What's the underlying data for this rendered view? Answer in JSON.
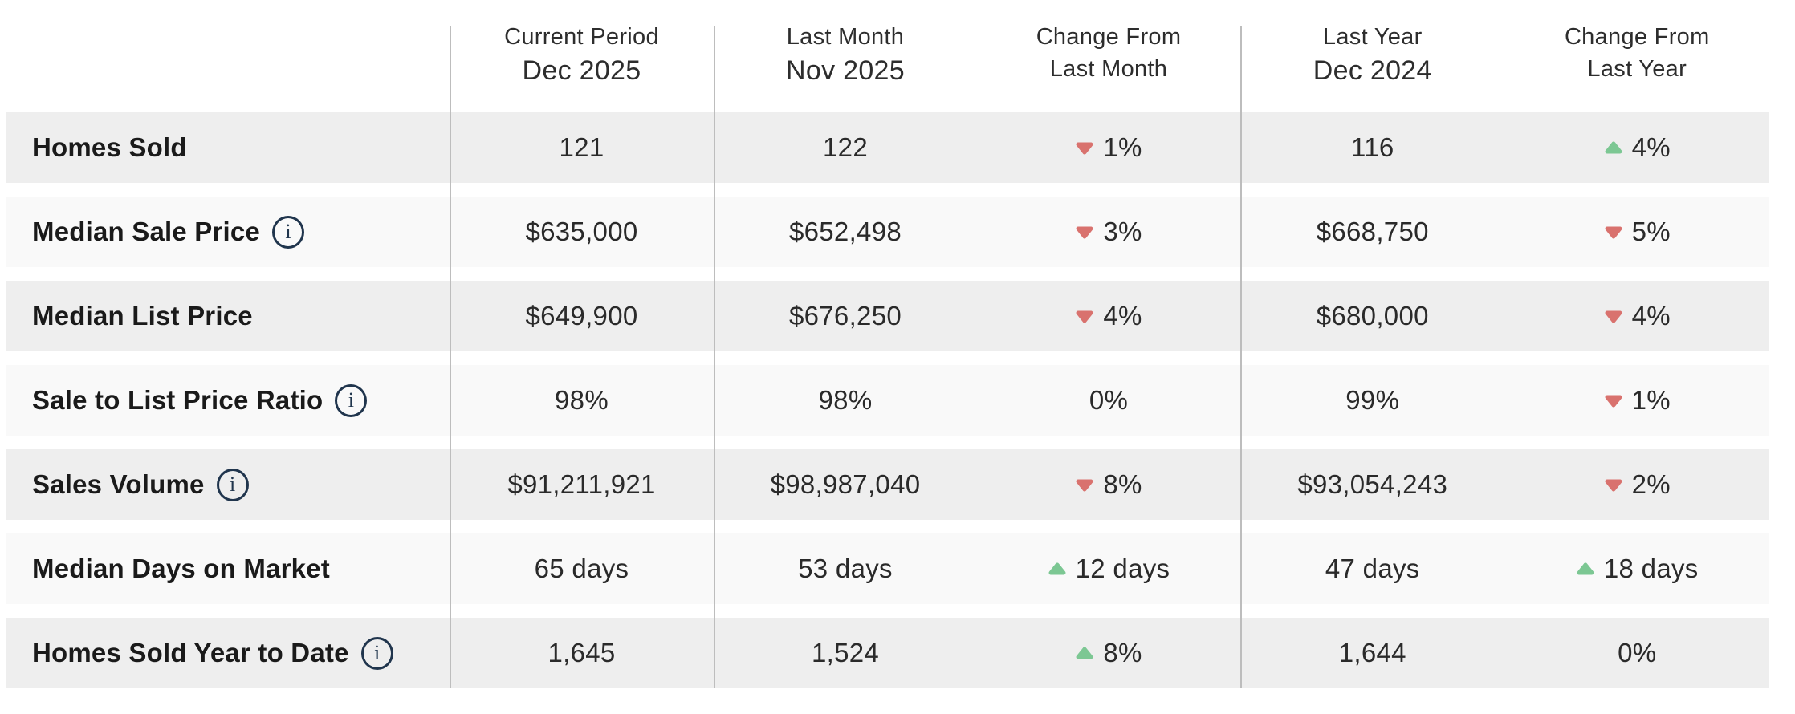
{
  "header": {
    "columns": [
      {
        "line1": "Current Period",
        "line2": "Dec 2025"
      },
      {
        "line1": "Last Month",
        "line2": "Nov 2025"
      },
      {
        "line1": "Change From",
        "line2": "Last Month"
      },
      {
        "line1": "Last Year",
        "line2": "Dec 2024"
      },
      {
        "line1": "Change From",
        "line2": "Last Year"
      }
    ]
  },
  "icons": {
    "info": "i",
    "up_triangle": "triangle-up",
    "down_triangle": "triangle-down"
  },
  "colors": {
    "up_green": "#7cc793",
    "down_red": "#d9726e",
    "band_grey": "#eeeeee",
    "band_light": "#f9f9f9",
    "divider_grey": "#bdbdbd",
    "info_navy": "#20354d"
  },
  "rows": [
    {
      "label": "Homes Sold",
      "has_info": false,
      "current": "121",
      "last_month": "122",
      "change_month": {
        "dir": "down",
        "text": "1%"
      },
      "last_year": "116",
      "change_year": {
        "dir": "up",
        "text": "4%"
      }
    },
    {
      "label": "Median Sale Price",
      "has_info": true,
      "current": "$635,000",
      "last_month": "$652,498",
      "change_month": {
        "dir": "down",
        "text": "3%"
      },
      "last_year": "$668,750",
      "change_year": {
        "dir": "down",
        "text": "5%"
      }
    },
    {
      "label": "Median List Price",
      "has_info": false,
      "current": "$649,900",
      "last_month": "$676,250",
      "change_month": {
        "dir": "down",
        "text": "4%"
      },
      "last_year": "$680,000",
      "change_year": {
        "dir": "down",
        "text": "4%"
      }
    },
    {
      "label": "Sale to List Price Ratio",
      "has_info": true,
      "current": "98%",
      "last_month": "98%",
      "change_month": {
        "dir": "none",
        "text": "0%"
      },
      "last_year": "99%",
      "change_year": {
        "dir": "down",
        "text": "1%"
      }
    },
    {
      "label": "Sales Volume",
      "has_info": true,
      "current": "$91,211,921",
      "last_month": "$98,987,040",
      "change_month": {
        "dir": "down",
        "text": "8%"
      },
      "last_year": "$93,054,243",
      "change_year": {
        "dir": "down",
        "text": "2%"
      }
    },
    {
      "label": "Median Days on Market",
      "has_info": false,
      "current": "65 days",
      "last_month": "53 days",
      "change_month": {
        "dir": "up",
        "text": "12 days"
      },
      "last_year": "47 days",
      "change_year": {
        "dir": "up",
        "text": "18 days"
      }
    },
    {
      "label": "Homes Sold Year to Date",
      "has_info": true,
      "current": "1,645",
      "last_month": "1,524",
      "change_month": {
        "dir": "up",
        "text": "8%"
      },
      "last_year": "1,644",
      "change_year": {
        "dir": "none",
        "text": "0%"
      }
    }
  ]
}
